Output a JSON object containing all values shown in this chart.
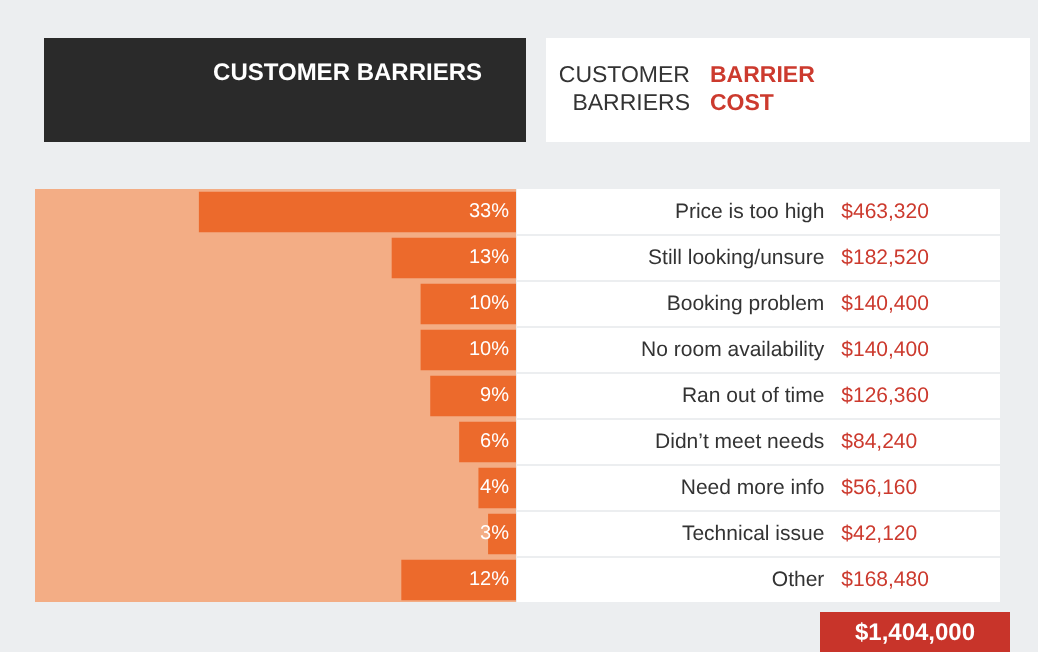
{
  "chart_data": {
    "type": "bar",
    "orientation": "horizontal",
    "title": "CUSTOMER BARRIERS",
    "ylabel": "CUSTOMER BARRIERS",
    "categories": [
      "Price is too high",
      "Still looking/unsure",
      "Booking problem",
      "No room availability",
      "Ran out of time",
      "Didn’t meet needs",
      "Need more info",
      "Technical issue",
      "Other"
    ],
    "values": [
      33,
      13,
      10,
      10,
      9,
      6,
      4,
      3,
      12
    ],
    "value_labels": [
      "33%",
      "13%",
      "10%",
      "10%",
      "9%",
      "6%",
      "4%",
      "3%",
      "12%"
    ],
    "color": "#ec6a2c",
    "xlim": [
      50,
      0
    ],
    "tick_labels": false,
    "annotations": [
      "BARRIER COST",
      "$1,404,000",
      "$463,320",
      "$182,520",
      "$140,400",
      "$140,400",
      "$126,360",
      "$84,240",
      "$56,160",
      "$42,120",
      "$168,480"
    ]
  }
}
